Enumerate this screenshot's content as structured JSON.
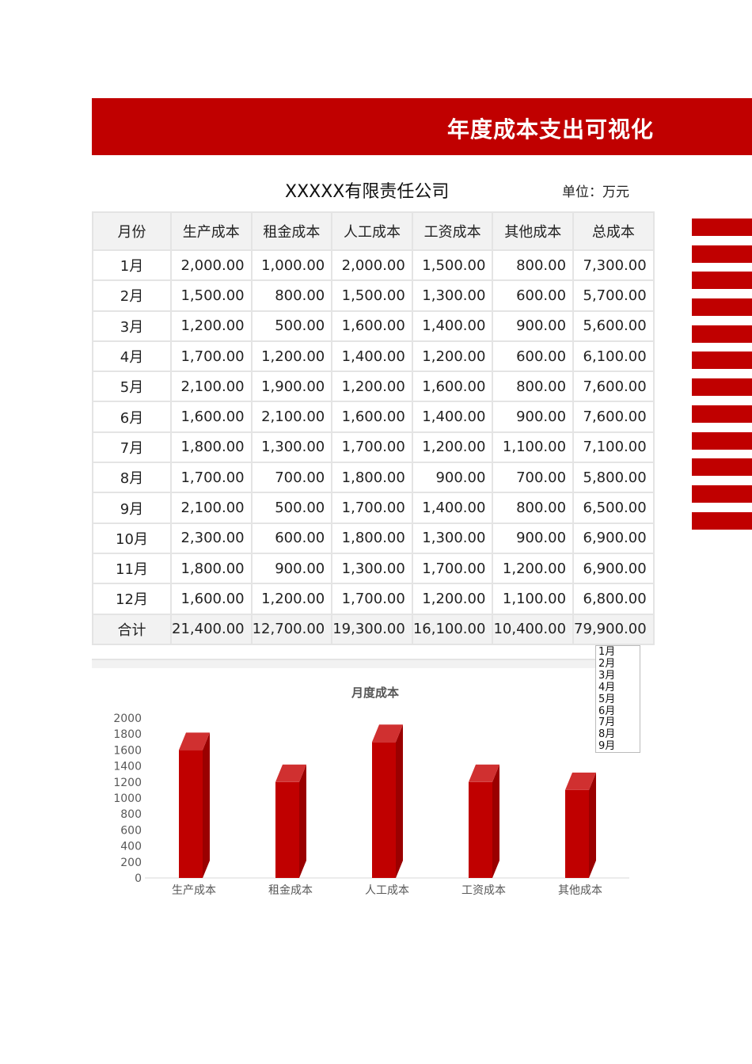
{
  "header": {
    "title": "年度成本支出可视化"
  },
  "company": "XXXXX有限责任公司",
  "unit": "单位：万元",
  "table": {
    "columns": [
      "月份",
      "生产成本",
      "租金成本",
      "人工成本",
      "工资成本",
      "其他成本",
      "总成本"
    ],
    "rows": [
      [
        "1月",
        "2,000.00",
        "1,000.00",
        "2,000.00",
        "1,500.00",
        "800.00",
        "7,300.00"
      ],
      [
        "2月",
        "1,500.00",
        "800.00",
        "1,500.00",
        "1,300.00",
        "600.00",
        "5,700.00"
      ],
      [
        "3月",
        "1,200.00",
        "500.00",
        "1,600.00",
        "1,400.00",
        "900.00",
        "5,600.00"
      ],
      [
        "4月",
        "1,700.00",
        "1,200.00",
        "1,400.00",
        "1,200.00",
        "600.00",
        "6,100.00"
      ],
      [
        "5月",
        "2,100.00",
        "1,900.00",
        "1,200.00",
        "1,600.00",
        "800.00",
        "7,600.00"
      ],
      [
        "6月",
        "1,600.00",
        "2,100.00",
        "1,600.00",
        "1,400.00",
        "900.00",
        "7,600.00"
      ],
      [
        "7月",
        "1,800.00",
        "1,300.00",
        "1,700.00",
        "1,200.00",
        "1,100.00",
        "7,100.00"
      ],
      [
        "8月",
        "1,700.00",
        "700.00",
        "1,800.00",
        "900.00",
        "700.00",
        "5,800.00"
      ],
      [
        "9月",
        "2,100.00",
        "500.00",
        "1,700.00",
        "1,400.00",
        "800.00",
        "6,500.00"
      ],
      [
        "10月",
        "2,300.00",
        "600.00",
        "1,800.00",
        "1,300.00",
        "900.00",
        "6,900.00"
      ],
      [
        "11月",
        "1,800.00",
        "900.00",
        "1,300.00",
        "1,700.00",
        "1,200.00",
        "6,900.00"
      ],
      [
        "12月",
        "1,600.00",
        "1,200.00",
        "1,700.00",
        "1,200.00",
        "1,100.00",
        "6,800.00"
      ]
    ],
    "total": [
      "合计",
      "21,400.00",
      "12,700.00",
      "19,300.00",
      "16,100.00",
      "10,400.00",
      "79,900.00"
    ]
  },
  "slicer": {
    "items": [
      "1月",
      "2月",
      "3月",
      "4月",
      "5月",
      "6月",
      "7月",
      "8月",
      "9月"
    ]
  },
  "chart_data": {
    "type": "bar",
    "title": "月度成本",
    "categories": [
      "生产成本",
      "租金成本",
      "人工成本",
      "工资成本",
      "其他成本"
    ],
    "values": [
      1600,
      1200,
      1700,
      1200,
      1100
    ],
    "ylim": [
      0,
      2000
    ],
    "yticks": [
      "0",
      "200",
      "400",
      "600",
      "800",
      "1000",
      "1200",
      "1400",
      "1600",
      "1800",
      "2000"
    ],
    "color": "#c00000",
    "grid": false,
    "legend": "none"
  },
  "colors": {
    "accent": "#c00000",
    "header_bg": "#f2f2f2"
  }
}
